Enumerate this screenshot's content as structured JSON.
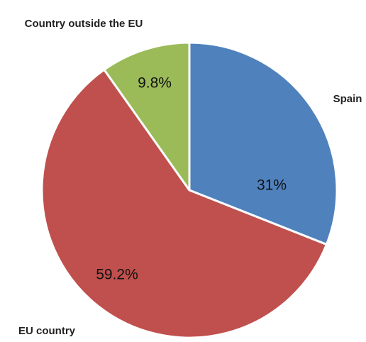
{
  "chart_data": {
    "type": "pie",
    "categories": [
      "Spain",
      "EU country",
      "Country outside the EU"
    ],
    "values": [
      31,
      59.2,
      9.8
    ],
    "value_labels": [
      "31%",
      "59.2%",
      "9.8%"
    ],
    "colors": [
      "#4f81bd",
      "#c0504d",
      "#9bbb59"
    ]
  }
}
